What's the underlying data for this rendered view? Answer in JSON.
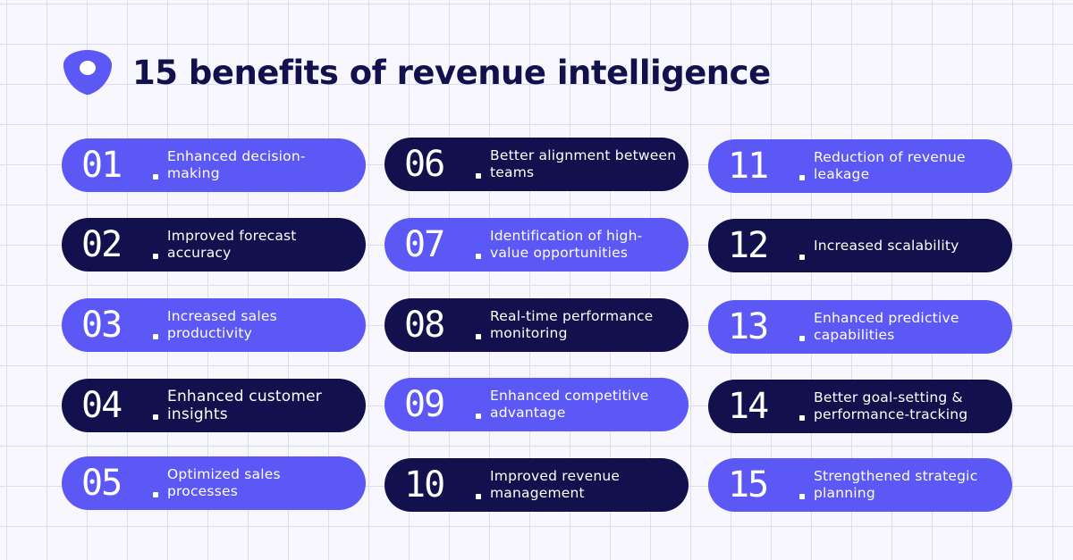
{
  "title": "15 benefits of revenue intelligence",
  "colors": {
    "light_pill": "#5b58f6",
    "dark_pill": "#12114d",
    "title": "#12114d",
    "background": "#f7f7fd"
  },
  "logo": "brand-logo-icon",
  "items": [
    {
      "num": "01",
      "label": "Enhanced decision-making",
      "style": "light"
    },
    {
      "num": "02",
      "label": "Improved forecast accuracy",
      "style": "dark"
    },
    {
      "num": "03",
      "label": "Increased sales productivity",
      "style": "light"
    },
    {
      "num": "04",
      "label": "Enhanced customer insights",
      "style": "dark"
    },
    {
      "num": "05",
      "label": "Optimized sales processes",
      "style": "light"
    },
    {
      "num": "06",
      "label": "Better alignment between teams",
      "style": "dark"
    },
    {
      "num": "07",
      "label": "Identification of high-value opportunities",
      "style": "light"
    },
    {
      "num": "08",
      "label": "Real-time performance monitoring",
      "style": "dark"
    },
    {
      "num": "09",
      "label": "Enhanced competitive advantage",
      "style": "light"
    },
    {
      "num": "10",
      "label": "Improved revenue management",
      "style": "dark"
    },
    {
      "num": "11",
      "label": "Reduction of revenue leakage",
      "style": "light"
    },
    {
      "num": "12",
      "label": "Increased scalability",
      "style": "dark"
    },
    {
      "num": "13",
      "label": "Enhanced predictive capabilities",
      "style": "light"
    },
    {
      "num": "14",
      "label": "Better goal-setting & performance-tracking",
      "style": "dark"
    },
    {
      "num": "15",
      "label": "Strengthened strategic planning",
      "style": "light"
    }
  ]
}
